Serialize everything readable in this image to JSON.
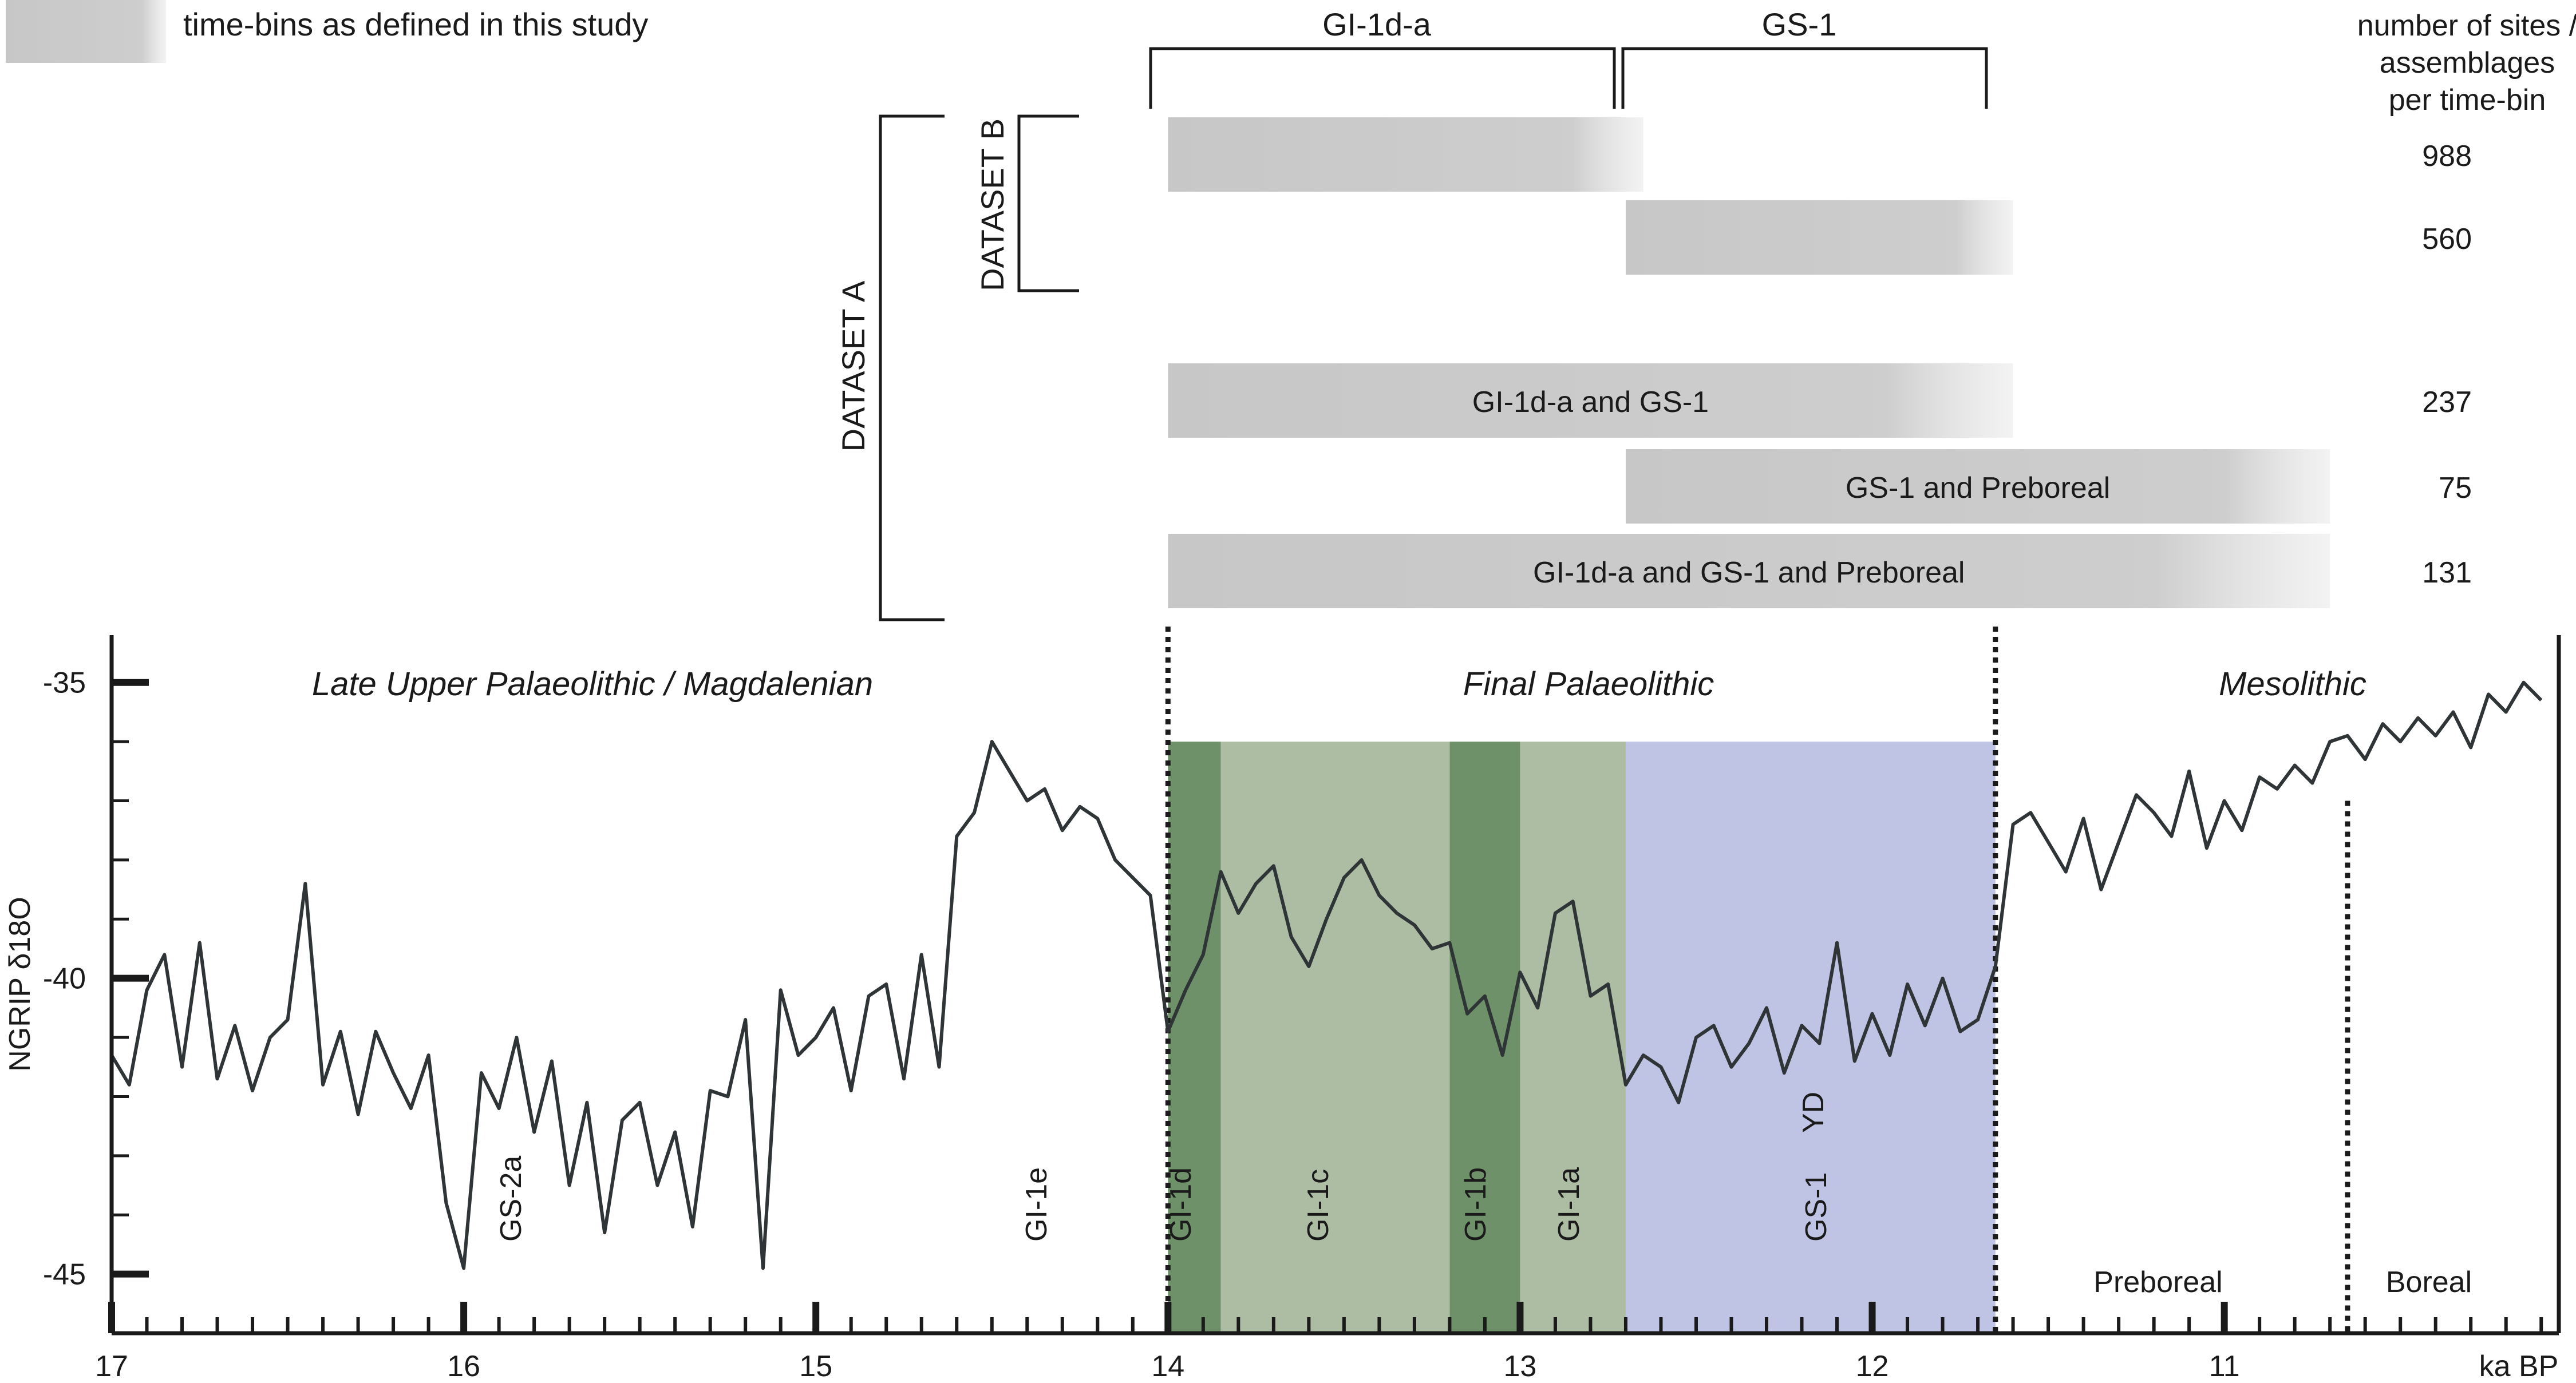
{
  "legend": {
    "swatch_label": "time-bins as defined in this study"
  },
  "colors": {
    "gi_light": "#acbda4",
    "gi_dark": "#6f9169",
    "gs1": "#c0c4e4",
    "bin_gray": "#c4c4c4",
    "curve": "#2f3536",
    "axis": "#1a1a1a"
  },
  "top_brackets": {
    "gi1da_label": "GI-1d-a",
    "gs1_label": "GS-1",
    "count_header": [
      "number of sites /",
      "assemblages",
      "per time-bin"
    ]
  },
  "datasets": {
    "a_label": "DATASET A",
    "b_label": "DATASET B"
  },
  "time_bins": [
    {
      "label": "",
      "start_ka": 14.0,
      "end_ka": 12.65,
      "count": "988"
    },
    {
      "label": "",
      "start_ka": 12.7,
      "end_ka": 11.6,
      "count": "560"
    },
    {
      "label": "GI-1d-a and GS-1",
      "start_ka": 14.0,
      "end_ka": 11.6,
      "count": "237"
    },
    {
      "label": "GS-1 and Preboreal",
      "start_ka": 12.7,
      "end_ka": 10.7,
      "count": "75"
    },
    {
      "label": "GI-1d-a and GS-1 and Preboreal",
      "start_ka": 14.0,
      "end_ka": 10.7,
      "count": "131"
    }
  ],
  "periods": {
    "magdalenian": "Late Upper Palaeolithic / Magdalenian",
    "final_palaeolithic": "Final Palaeolithic",
    "mesolithic": "Mesolithic"
  },
  "events": {
    "gs2a": "GS-2a",
    "gi1e": "GI-1e",
    "gi1d": "GI-1d",
    "gi1c": "GI-1c",
    "gi1b": "GI-1b",
    "gi1a": "GI-1a",
    "gs1": "GS-1",
    "yd": "YD",
    "preboreal": "Preboreal",
    "boreal": "Boreal"
  },
  "chart_data": {
    "type": "line",
    "title": "",
    "xlabel": "ka BP",
    "ylabel": "NGRIP δ18O",
    "xlim": [
      17,
      10.05
    ],
    "ylim": [
      -46,
      -34.2
    ],
    "x_ticks": [
      "17",
      "16",
      "15",
      "14",
      "13",
      "12",
      "11"
    ],
    "y_ticks": [
      "-35",
      "-40",
      "-45"
    ],
    "y_tick_values": [
      -35,
      -40,
      -45
    ],
    "x_tick_values": [
      17,
      16,
      15,
      14,
      13,
      12,
      11
    ],
    "shaded_intervals": [
      {
        "name": "GI-1d",
        "start_ka": 14.0,
        "end_ka": 13.85,
        "color": "gi_dark"
      },
      {
        "name": "GI-1c",
        "start_ka": 13.85,
        "end_ka": 13.2,
        "color": "gi_light"
      },
      {
        "name": "GI-1b",
        "start_ka": 13.2,
        "end_ka": 13.0,
        "color": "gi_dark"
      },
      {
        "name": "GI-1a",
        "start_ka": 13.0,
        "end_ka": 12.7,
        "color": "gi_light"
      },
      {
        "name": "GS-1",
        "start_ka": 12.7,
        "end_ka": 11.65,
        "color": "gs1"
      }
    ],
    "boundaries_ka": [
      14.0,
      11.65,
      10.65
    ],
    "series": [
      {
        "name": "NGRIP δ18O",
        "x": [
          17.0,
          16.95,
          16.9,
          16.85,
          16.8,
          16.75,
          16.7,
          16.65,
          16.6,
          16.55,
          16.5,
          16.45,
          16.4,
          16.35,
          16.3,
          16.25,
          16.2,
          16.15,
          16.1,
          16.05,
          16.0,
          15.95,
          15.9,
          15.85,
          15.8,
          15.75,
          15.7,
          15.65,
          15.6,
          15.55,
          15.5,
          15.45,
          15.4,
          15.35,
          15.3,
          15.25,
          15.2,
          15.15,
          15.1,
          15.05,
          15.0,
          14.95,
          14.9,
          14.85,
          14.8,
          14.75,
          14.7,
          14.65,
          14.6,
          14.55,
          14.5,
          14.45,
          14.4,
          14.35,
          14.3,
          14.25,
          14.2,
          14.15,
          14.1,
          14.05,
          14.0,
          13.95,
          13.9,
          13.85,
          13.8,
          13.75,
          13.7,
          13.65,
          13.6,
          13.55,
          13.5,
          13.45,
          13.4,
          13.35,
          13.3,
          13.25,
          13.2,
          13.15,
          13.1,
          13.05,
          13.0,
          12.95,
          12.9,
          12.85,
          12.8,
          12.75,
          12.7,
          12.65,
          12.6,
          12.55,
          12.5,
          12.45,
          12.4,
          12.35,
          12.3,
          12.25,
          12.2,
          12.15,
          12.1,
          12.05,
          12.0,
          11.95,
          11.9,
          11.85,
          11.8,
          11.75,
          11.7,
          11.65,
          11.6,
          11.55,
          11.5,
          11.45,
          11.4,
          11.35,
          11.3,
          11.25,
          11.2,
          11.15,
          11.1,
          11.05,
          11.0,
          10.95,
          10.9,
          10.85,
          10.8,
          10.75,
          10.7,
          10.65,
          10.6,
          10.55,
          10.5,
          10.45,
          10.4,
          10.35,
          10.3,
          10.25,
          10.2,
          10.15,
          10.1
        ],
        "values": [
          -41.3,
          -41.8,
          -40.2,
          -39.6,
          -41.5,
          -39.4,
          -41.7,
          -40.8,
          -41.9,
          -41.0,
          -40.7,
          -38.4,
          -41.8,
          -40.9,
          -42.3,
          -40.9,
          -41.6,
          -42.2,
          -41.3,
          -43.8,
          -44.9,
          -41.6,
          -42.2,
          -41.0,
          -42.6,
          -41.4,
          -43.5,
          -42.1,
          -44.3,
          -42.4,
          -42.1,
          -43.5,
          -42.6,
          -44.2,
          -41.9,
          -42.0,
          -40.7,
          -44.9,
          -40.2,
          -41.3,
          -41.0,
          -40.5,
          -41.9,
          -40.3,
          -40.1,
          -41.7,
          -39.6,
          -41.5,
          -37.6,
          -37.2,
          -36.0,
          -36.5,
          -37.0,
          -36.8,
          -37.5,
          -37.1,
          -37.3,
          -38.0,
          -38.3,
          -38.6,
          -40.9,
          -40.2,
          -39.6,
          -38.2,
          -38.9,
          -38.4,
          -38.1,
          -39.3,
          -39.8,
          -39.0,
          -38.3,
          -38.0,
          -38.6,
          -38.9,
          -39.1,
          -39.5,
          -39.4,
          -40.6,
          -40.3,
          -41.3,
          -39.9,
          -40.5,
          -38.9,
          -38.7,
          -40.3,
          -40.1,
          -41.8,
          -41.3,
          -41.5,
          -42.1,
          -41.0,
          -40.8,
          -41.5,
          -41.1,
          -40.5,
          -41.6,
          -40.8,
          -41.1,
          -39.4,
          -41.4,
          -40.6,
          -41.3,
          -40.1,
          -40.8,
          -40.0,
          -40.9,
          -40.7,
          -39.8,
          -37.4,
          -37.2,
          -37.7,
          -38.2,
          -37.3,
          -38.5,
          -37.7,
          -36.9,
          -37.2,
          -37.6,
          -36.5,
          -37.8,
          -37.0,
          -37.5,
          -36.6,
          -36.8,
          -36.4,
          -36.7,
          -36.0,
          -35.9,
          -36.3,
          -35.7,
          -36.0,
          -35.6,
          -35.9,
          -35.5,
          -36.1,
          -35.2,
          -35.5,
          -35.0,
          -35.3
        ]
      }
    ]
  }
}
